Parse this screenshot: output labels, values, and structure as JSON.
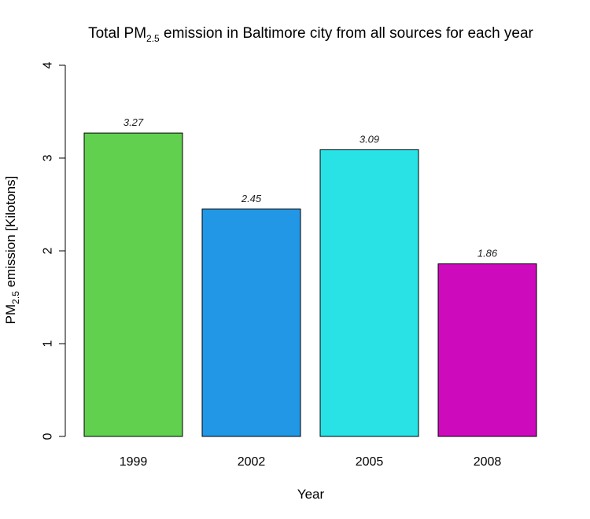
{
  "chart_data": {
    "type": "bar",
    "title": {
      "prefix": "Total PM",
      "subscript": "2.5",
      "suffix": " emission in Baltimore city from all sources for each year"
    },
    "xlabel": "Year",
    "ylabel": {
      "prefix": "PM",
      "subscript": "2.5",
      "suffix": " emission [Kilotons]"
    },
    "categories": [
      "1999",
      "2002",
      "2005",
      "2008"
    ],
    "values": [
      3.27,
      2.45,
      3.09,
      1.86
    ],
    "value_labels": [
      "3.27",
      "2.45",
      "3.09",
      "1.86"
    ],
    "colors": [
      "#61d04f",
      "#2297e6",
      "#28e2e5",
      "#cd0bbc"
    ],
    "ylim": [
      0,
      4
    ],
    "yticks": [
      0,
      1,
      2,
      3,
      4
    ],
    "grid": false,
    "legend": "none"
  }
}
